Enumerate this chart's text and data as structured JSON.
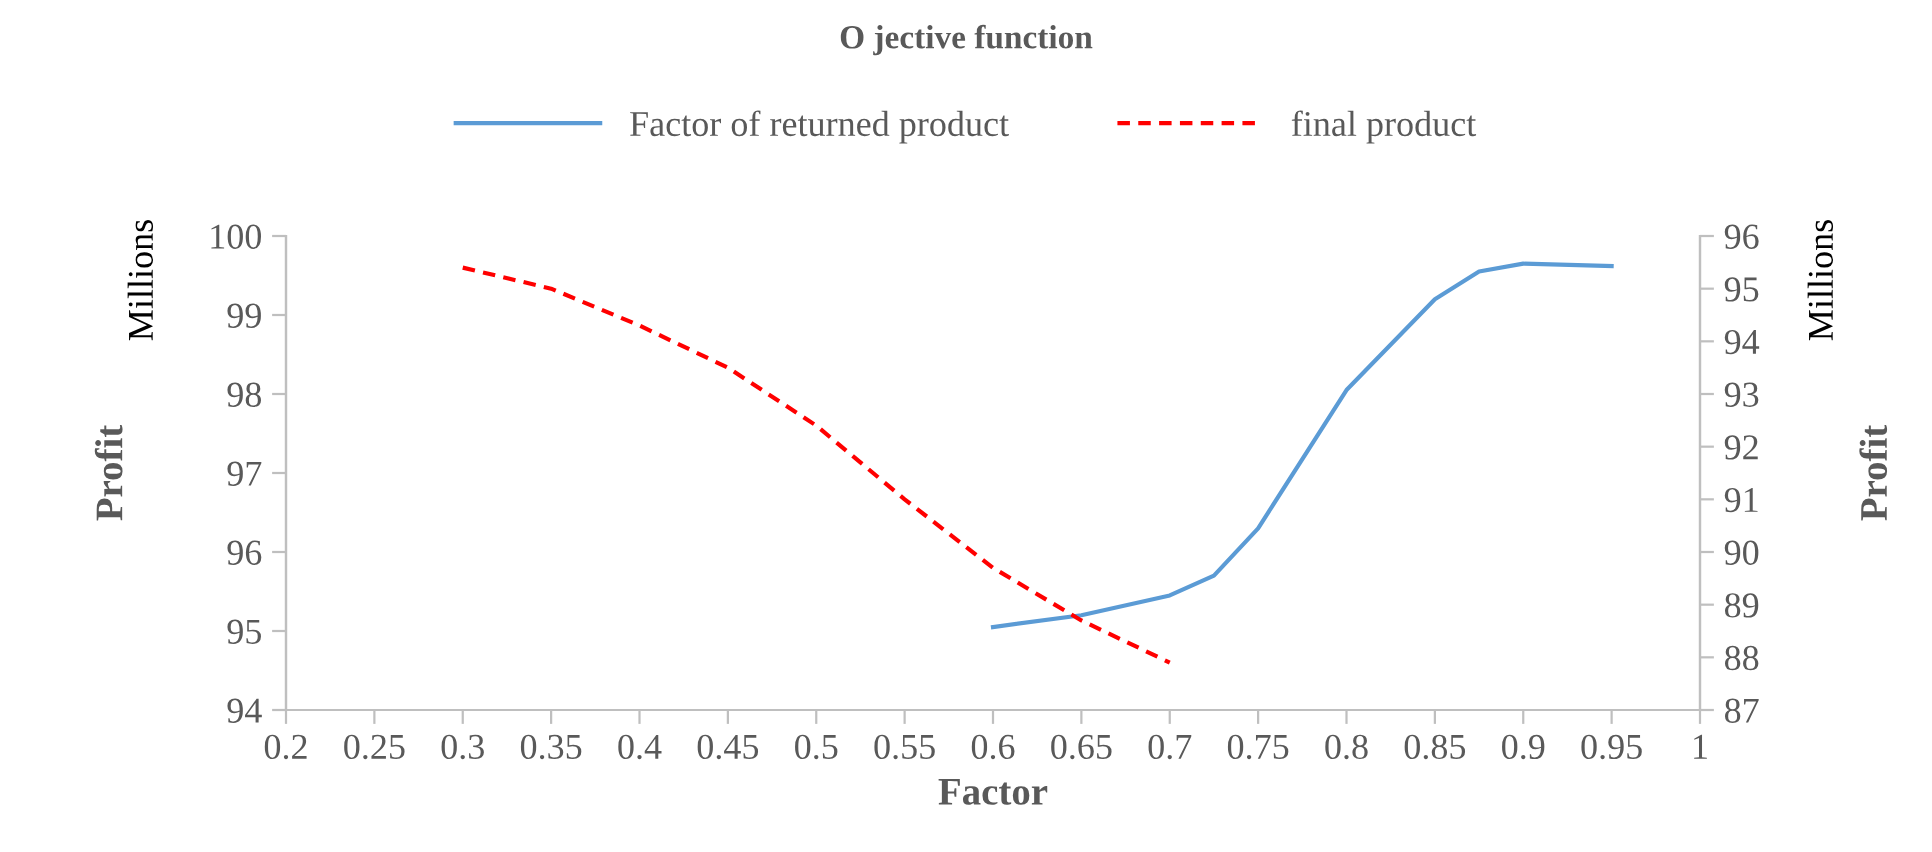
{
  "chart_data": {
    "type": "line",
    "title": "O jective function",
    "xlabel": "Factor",
    "ylabel": "Profit",
    "y2label": "Profit",
    "annotations": [
      "Millions",
      "Millions"
    ],
    "series": [
      {
        "name": "Factor of returned product",
        "color": "#5b9bd5",
        "line_style": "solid",
        "x": [
          0.6,
          0.65,
          0.7,
          0.725,
          0.75,
          0.8,
          0.85,
          0.875,
          0.9,
          0.95
        ],
        "values": [
          95.05,
          95.2,
          95.45,
          95.7,
          96.3,
          98.05,
          99.2,
          99.55,
          99.65,
          99.62
        ]
      },
      {
        "name": "final product",
        "color": "#ff0000",
        "line_style": "dashed",
        "axis": "y2",
        "x": [
          0.3,
          0.35,
          0.4,
          0.45,
          0.5,
          0.55,
          0.6,
          0.65,
          0.7
        ],
        "values": [
          95.4,
          95.0,
          94.3,
          93.5,
          92.4,
          91.0,
          89.7,
          88.7,
          87.9
        ]
      }
    ],
    "xlim": [
      0.2,
      1
    ],
    "xticks": [
      0.2,
      0.25,
      0.3,
      0.35,
      0.4,
      0.45,
      0.5,
      0.55,
      0.6,
      0.65,
      0.7,
      0.75,
      0.8,
      0.85,
      0.9,
      0.95,
      1
    ],
    "ylim": [
      94,
      100
    ],
    "yticks": [
      94,
      95,
      96,
      97,
      98,
      99,
      100
    ],
    "y2lim": [
      87,
      96
    ],
    "y2ticks": [
      87,
      88,
      89,
      90,
      91,
      92,
      93,
      94,
      95,
      96
    ],
    "legend": "top",
    "grid": false,
    "marker": "none"
  }
}
